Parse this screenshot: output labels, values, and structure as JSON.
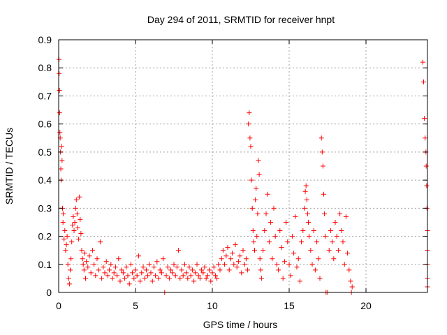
{
  "chart_data": {
    "type": "scatter",
    "title": "Day 294 of 2011, SRMTID for receiver hnpt",
    "xlabel": "GPS time / hours",
    "ylabel": "SRMTID / TECUs",
    "xlim": [
      0,
      24
    ],
    "ylim": [
      0,
      0.9
    ],
    "xticks": [
      0,
      5,
      10,
      15,
      20
    ],
    "yticks": [
      0,
      0.1,
      0.2,
      0.3,
      0.4,
      0.5,
      0.6,
      0.7,
      0.8,
      0.9
    ],
    "xtick_labels": [
      "0",
      "5",
      "10",
      "15",
      "20"
    ],
    "ytick_labels": [
      "0",
      "0.1",
      "0.2",
      "0.3",
      "0.4",
      "0.5",
      "0.6",
      "0.7",
      "0.8",
      "0.9"
    ],
    "grid": true,
    "marker": "+",
    "marker_color": "#ff0000",
    "series": [
      {
        "points": [
          [
            0.02,
            0.83
          ],
          [
            0.03,
            0.78
          ],
          [
            0.05,
            0.72
          ],
          [
            0.06,
            0.64
          ],
          [
            0.08,
            0.57
          ],
          [
            0.1,
            0.55
          ],
          [
            0.12,
            0.5
          ],
          [
            0.14,
            0.44
          ],
          [
            0.16,
            0.4
          ],
          [
            0.2,
            0.52
          ],
          [
            0.22,
            0.47
          ],
          [
            0.25,
            0.3
          ],
          [
            0.28,
            0.25
          ],
          [
            0.3,
            0.28
          ],
          [
            0.35,
            0.19
          ],
          [
            0.4,
            0.22
          ],
          [
            0.45,
            0.15
          ],
          [
            0.5,
            0.17
          ],
          [
            0.55,
            0.2
          ],
          [
            0.6,
            0.1
          ],
          [
            0.65,
            0.05
          ],
          [
            0.7,
            0.03
          ],
          [
            0.75,
            0.08
          ],
          [
            0.8,
            0.12
          ],
          [
            0.85,
            0.18
          ],
          [
            0.9,
            0.24
          ],
          [
            0.95,
            0.27
          ],
          [
            1.0,
            0.22
          ],
          [
            1.05,
            0.25
          ],
          [
            1.1,
            0.3
          ],
          [
            1.15,
            0.33
          ],
          [
            1.2,
            0.28
          ],
          [
            1.25,
            0.23
          ],
          [
            1.3,
            0.19
          ],
          [
            1.35,
            0.34
          ],
          [
            1.4,
            0.26
          ],
          [
            1.45,
            0.21
          ],
          [
            1.5,
            0.15
          ],
          [
            1.55,
            0.12
          ],
          [
            1.6,
            0.1
          ],
          [
            1.65,
            0.08
          ],
          [
            1.7,
            0.14
          ],
          [
            1.75,
            0.05
          ],
          [
            1.8,
            0.11
          ],
          [
            1.9,
            0.09
          ],
          [
            2.0,
            0.13
          ],
          [
            2.1,
            0.07
          ],
          [
            2.2,
            0.15
          ],
          [
            2.3,
            0.1
          ],
          [
            2.4,
            0.06
          ],
          [
            2.5,
            0.12
          ],
          [
            2.6,
            0.08
          ],
          [
            2.7,
            0.18
          ],
          [
            2.8,
            0.05
          ],
          [
            2.9,
            0.09
          ],
          [
            3.0,
            0.07
          ],
          [
            3.1,
            0.11
          ],
          [
            3.2,
            0.06
          ],
          [
            3.3,
            0.08
          ],
          [
            3.4,
            0.1
          ],
          [
            3.5,
            0.05
          ],
          [
            3.6,
            0.07
          ],
          [
            3.7,
            0.09
          ],
          [
            3.8,
            0.06
          ],
          [
            3.9,
            0.12
          ],
          [
            4.0,
            0.04
          ],
          [
            4.1,
            0.08
          ],
          [
            4.2,
            0.07
          ],
          [
            4.3,
            0.05
          ],
          [
            4.4,
            0.09
          ],
          [
            4.5,
            0.06
          ],
          [
            4.6,
            0.03
          ],
          [
            4.7,
            0.1
          ],
          [
            4.8,
            0.07
          ],
          [
            4.9,
            0.05
          ],
          [
            5.0,
            0.08
          ],
          [
            5.1,
            0.06
          ],
          [
            5.2,
            0.13
          ],
          [
            5.3,
            0.04
          ],
          [
            5.4,
            0.07
          ],
          [
            5.5,
            0.09
          ],
          [
            5.6,
            0.05
          ],
          [
            5.7,
            0.08
          ],
          [
            5.8,
            0.06
          ],
          [
            5.9,
            0.1
          ],
          [
            6.0,
            0.07
          ],
          [
            6.1,
            0.04
          ],
          [
            6.2,
            0.09
          ],
          [
            6.3,
            0.06
          ],
          [
            6.4,
            0.11
          ],
          [
            6.5,
            0.05
          ],
          [
            6.6,
            0.08
          ],
          [
            6.7,
            0.07
          ],
          [
            6.8,
            0.12
          ],
          [
            6.9,
            0.0
          ],
          [
            7.0,
            0.06
          ],
          [
            7.1,
            0.09
          ],
          [
            7.2,
            0.05
          ],
          [
            7.3,
            0.08
          ],
          [
            7.4,
            0.07
          ],
          [
            7.5,
            0.1
          ],
          [
            7.6,
            0.06
          ],
          [
            7.7,
            0.09
          ],
          [
            7.8,
            0.15
          ],
          [
            7.9,
            0.05
          ],
          [
            8.0,
            0.08
          ],
          [
            8.1,
            0.06
          ],
          [
            8.2,
            0.1
          ],
          [
            8.3,
            0.07
          ],
          [
            8.4,
            0.05
          ],
          [
            8.5,
            0.09
          ],
          [
            8.6,
            0.06
          ],
          [
            8.7,
            0.08
          ],
          [
            8.8,
            0.04
          ],
          [
            8.9,
            0.07
          ],
          [
            9.0,
            0.1
          ],
          [
            9.1,
            0.06
          ],
          [
            9.2,
            0.05
          ],
          [
            9.3,
            0.08
          ],
          [
            9.4,
            0.07
          ],
          [
            9.5,
            0.09
          ],
          [
            9.6,
            0.05
          ],
          [
            9.7,
            0.06
          ],
          [
            9.8,
            0.08
          ],
          [
            9.9,
            0.04
          ],
          [
            10.0,
            0.07
          ],
          [
            10.1,
            0.09
          ],
          [
            10.2,
            0.06
          ],
          [
            10.3,
            0.05
          ],
          [
            10.4,
            0.1
          ],
          [
            10.5,
            0.08
          ],
          [
            10.6,
            0.12
          ],
          [
            10.7,
            0.15
          ],
          [
            10.8,
            0.1
          ],
          [
            10.9,
            0.13
          ],
          [
            11.0,
            0.16
          ],
          [
            11.1,
            0.08
          ],
          [
            11.2,
            0.12
          ],
          [
            11.3,
            0.14
          ],
          [
            11.4,
            0.1
          ],
          [
            11.5,
            0.17
          ],
          [
            11.6,
            0.09
          ],
          [
            11.7,
            0.11
          ],
          [
            11.8,
            0.13
          ],
          [
            11.9,
            0.07
          ],
          [
            12.0,
            0.15
          ],
          [
            12.1,
            0.1
          ],
          [
            12.2,
            0.12
          ],
          [
            12.3,
            0.08
          ],
          [
            12.35,
            0.6
          ],
          [
            12.4,
            0.64
          ],
          [
            12.45,
            0.55
          ],
          [
            12.5,
            0.52
          ],
          [
            12.55,
            0.4
          ],
          [
            12.6,
            0.3
          ],
          [
            12.65,
            0.22
          ],
          [
            12.7,
            0.18
          ],
          [
            12.75,
            0.15
          ],
          [
            12.8,
            0.33
          ],
          [
            12.85,
            0.37
          ],
          [
            12.9,
            0.2
          ],
          [
            12.95,
            0.28
          ],
          [
            13.0,
            0.47
          ],
          [
            13.05,
            0.42
          ],
          [
            13.1,
            0.12
          ],
          [
            13.15,
            0.08
          ],
          [
            13.2,
            0.05
          ],
          [
            13.3,
            0.15
          ],
          [
            13.4,
            0.22
          ],
          [
            13.5,
            0.28
          ],
          [
            13.6,
            0.35
          ],
          [
            13.7,
            0.18
          ],
          [
            13.8,
            0.25
          ],
          [
            13.9,
            0.12
          ],
          [
            14.0,
            0.3
          ],
          [
            14.1,
            0.2
          ],
          [
            14.2,
            0.1
          ],
          [
            14.3,
            0.08
          ],
          [
            14.4,
            0.22
          ],
          [
            14.5,
            0.16
          ],
          [
            14.6,
            0.05
          ],
          [
            14.7,
            0.11
          ],
          [
            14.8,
            0.25
          ],
          [
            14.9,
            0.18
          ],
          [
            15.0,
            0.1
          ],
          [
            15.1,
            0.06
          ],
          [
            15.2,
            0.2
          ],
          [
            15.3,
            0.14
          ],
          [
            15.4,
            0.27
          ],
          [
            15.5,
            0.09
          ],
          [
            15.6,
            0.12
          ],
          [
            15.7,
            0.04
          ],
          [
            15.8,
            0.18
          ],
          [
            15.9,
            0.22
          ],
          [
            16.0,
            0.3
          ],
          [
            16.05,
            0.36
          ],
          [
            16.1,
            0.38
          ],
          [
            16.15,
            0.33
          ],
          [
            16.2,
            0.28
          ],
          [
            16.25,
            0.25
          ],
          [
            16.3,
            0.2
          ],
          [
            16.4,
            0.15
          ],
          [
            16.5,
            0.1
          ],
          [
            16.6,
            0.22
          ],
          [
            16.7,
            0.08
          ],
          [
            16.8,
            0.18
          ],
          [
            16.9,
            0.12
          ],
          [
            17.0,
            0.05
          ],
          [
            17.1,
            0.55
          ],
          [
            17.15,
            0.5
          ],
          [
            17.2,
            0.45
          ],
          [
            17.25,
            0.35
          ],
          [
            17.3,
            0.28
          ],
          [
            17.35,
            0.2
          ],
          [
            17.4,
            0.0
          ],
          [
            17.5,
            0.0
          ],
          [
            17.6,
            0.15
          ],
          [
            17.7,
            0.22
          ],
          [
            17.8,
            0.18
          ],
          [
            17.9,
            0.12
          ],
          [
            18.0,
            0.25
          ],
          [
            18.1,
            0.2
          ],
          [
            18.2,
            0.15
          ],
          [
            18.3,
            0.28
          ],
          [
            18.4,
            0.22
          ],
          [
            18.5,
            0.18
          ],
          [
            18.6,
            0.1
          ],
          [
            18.7,
            0.27
          ],
          [
            18.8,
            0.14
          ],
          [
            18.9,
            0.08
          ],
          [
            19.0,
            0.04
          ],
          [
            19.05,
            0.0
          ],
          [
            19.1,
            0.02
          ],
          [
            23.7,
            0.82
          ],
          [
            23.75,
            0.75
          ],
          [
            23.8,
            0.62
          ],
          [
            23.85,
            0.55
          ],
          [
            23.9,
            0.5
          ],
          [
            23.92,
            0.45
          ],
          [
            23.95,
            0.38
          ],
          [
            23.97,
            0.3
          ],
          [
            24.0,
            0.22
          ],
          [
            24.02,
            0.15
          ],
          [
            24.05,
            0.1
          ],
          [
            24.07,
            0.05
          ],
          [
            24.1,
            0.02
          ]
        ]
      }
    ]
  }
}
